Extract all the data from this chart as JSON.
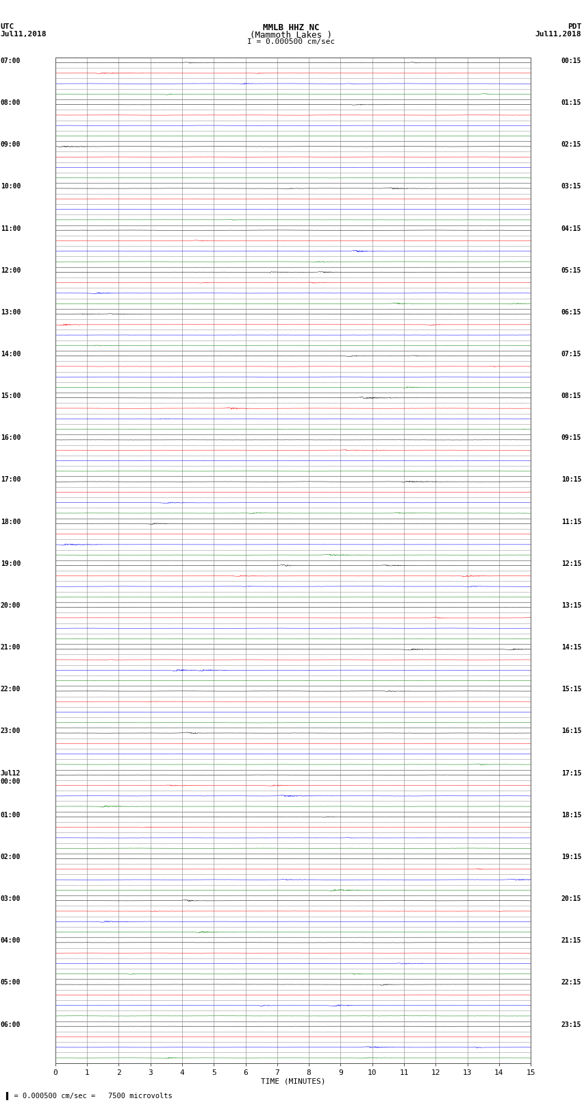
{
  "title_line1": "MMLB HHZ NC",
  "title_line2": "(Mammoth Lakes )",
  "title_line3": "I = 0.000500 cm/sec",
  "label_left_top1": "UTC",
  "label_left_top2": "Jul11,2018",
  "label_right_top1": "PDT",
  "label_right_top2": "Jul11,2018",
  "xlabel": "TIME (MINUTES)",
  "bottom_note": "= 0.000500 cm/sec =   7500 microvolts",
  "xlim": [
    0,
    15
  ],
  "xticks": [
    0,
    1,
    2,
    3,
    4,
    5,
    6,
    7,
    8,
    9,
    10,
    11,
    12,
    13,
    14,
    15
  ],
  "background_color": "#ffffff",
  "trace_colors": [
    "#000000",
    "#ff0000",
    "#0000ff",
    "#008000"
  ],
  "grid_color": "#999999",
  "num_hour_groups": 24,
  "traces_per_group": 4,
  "left_labels": [
    "07:00",
    "08:00",
    "09:00",
    "10:00",
    "11:00",
    "12:00",
    "13:00",
    "14:00",
    "15:00",
    "16:00",
    "17:00",
    "18:00",
    "19:00",
    "20:00",
    "21:00",
    "22:00",
    "23:00",
    "Jul12\n00:00",
    "01:00",
    "02:00",
    "03:00",
    "04:00",
    "05:00",
    "06:00"
  ],
  "right_labels": [
    "00:15",
    "01:15",
    "02:15",
    "03:15",
    "04:15",
    "05:15",
    "06:15",
    "07:15",
    "08:15",
    "09:15",
    "10:15",
    "11:15",
    "12:15",
    "13:15",
    "14:15",
    "15:15",
    "16:15",
    "17:15",
    "18:15",
    "19:15",
    "20:15",
    "21:15",
    "22:15",
    "23:15"
  ],
  "noise_scale": 0.018,
  "active_groups": [
    28,
    29,
    30,
    31,
    32,
    33,
    34,
    35,
    36,
    37,
    38,
    39,
    40,
    41,
    42,
    43,
    44,
    45,
    46,
    47
  ],
  "active_noise_scale": 0.055,
  "seed": 42
}
